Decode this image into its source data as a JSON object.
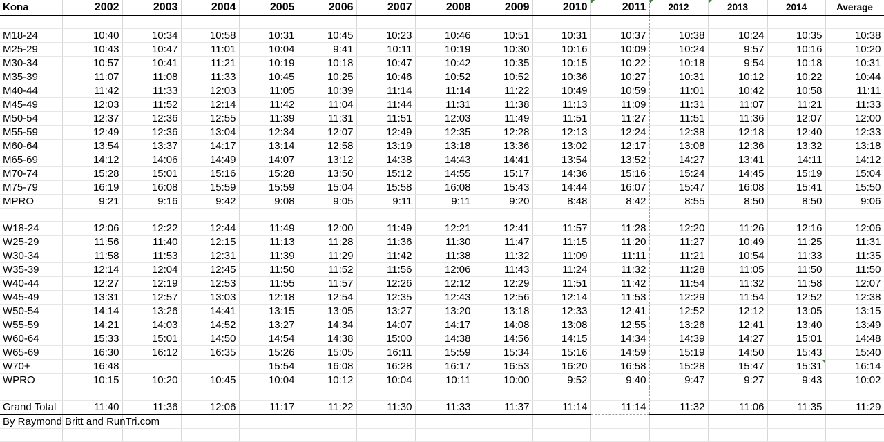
{
  "sheet": {
    "corner": "Kona",
    "years": [
      "2002",
      "2003",
      "2004",
      "2005",
      "2006",
      "2007",
      "2008",
      "2009",
      "2010",
      "2011",
      "2012",
      "2013",
      "2014"
    ],
    "average_label": "Average",
    "men_rows": [
      {
        "label": "M18-24",
        "values": [
          "10:40",
          "10:34",
          "10:58",
          "10:31",
          "10:45",
          "10:23",
          "10:46",
          "10:51",
          "10:31",
          "10:37",
          "10:38",
          "10:24",
          "10:35",
          "10:38"
        ]
      },
      {
        "label": "M25-29",
        "values": [
          "10:43",
          "10:47",
          "11:01",
          "10:04",
          "9:41",
          "10:11",
          "10:19",
          "10:30",
          "10:16",
          "10:09",
          "10:24",
          "9:57",
          "10:16",
          "10:20"
        ]
      },
      {
        "label": "M30-34",
        "values": [
          "10:57",
          "10:41",
          "11:21",
          "10:19",
          "10:18",
          "10:47",
          "10:42",
          "10:35",
          "10:15",
          "10:22",
          "10:18",
          "9:54",
          "10:18",
          "10:31"
        ]
      },
      {
        "label": "M35-39",
        "values": [
          "11:07",
          "11:08",
          "11:33",
          "10:45",
          "10:25",
          "10:46",
          "10:52",
          "10:52",
          "10:36",
          "10:27",
          "10:31",
          "10:12",
          "10:22",
          "10:44"
        ]
      },
      {
        "label": "M40-44",
        "values": [
          "11:42",
          "11:33",
          "12:03",
          "11:05",
          "10:39",
          "11:14",
          "11:14",
          "11:22",
          "10:49",
          "10:59",
          "11:01",
          "10:42",
          "10:58",
          "11:11"
        ]
      },
      {
        "label": "M45-49",
        "values": [
          "12:03",
          "11:52",
          "12:14",
          "11:42",
          "11:04",
          "11:44",
          "11:31",
          "11:38",
          "11:13",
          "11:09",
          "11:31",
          "11:07",
          "11:21",
          "11:33"
        ]
      },
      {
        "label": "M50-54",
        "values": [
          "12:37",
          "12:36",
          "12:55",
          "11:39",
          "11:31",
          "11:51",
          "12:03",
          "11:49",
          "11:51",
          "11:27",
          "11:51",
          "11:36",
          "12:07",
          "12:00"
        ]
      },
      {
        "label": "M55-59",
        "values": [
          "12:49",
          "12:36",
          "13:04",
          "12:34",
          "12:07",
          "12:49",
          "12:35",
          "12:28",
          "12:13",
          "12:24",
          "12:38",
          "12:18",
          "12:40",
          "12:33"
        ]
      },
      {
        "label": "M60-64",
        "values": [
          "13:54",
          "13:37",
          "14:17",
          "13:14",
          "12:58",
          "13:19",
          "13:18",
          "13:36",
          "13:02",
          "12:17",
          "13:08",
          "12:36",
          "13:32",
          "13:18"
        ]
      },
      {
        "label": "M65-69",
        "values": [
          "14:12",
          "14:06",
          "14:49",
          "14:07",
          "13:12",
          "14:38",
          "14:43",
          "14:41",
          "13:54",
          "13:52",
          "14:27",
          "13:41",
          "14:11",
          "14:12"
        ]
      },
      {
        "label": "M70-74",
        "values": [
          "15:28",
          "15:01",
          "15:16",
          "15:28",
          "13:50",
          "15:12",
          "14:55",
          "15:17",
          "14:36",
          "15:16",
          "15:24",
          "14:45",
          "15:19",
          "15:04"
        ]
      },
      {
        "label": "M75-79",
        "values": [
          "16:19",
          "16:08",
          "15:59",
          "15:59",
          "15:04",
          "15:58",
          "16:08",
          "15:43",
          "14:44",
          "16:07",
          "15:47",
          "16:08",
          "15:41",
          "15:50"
        ]
      },
      {
        "label": "MPRO",
        "values": [
          "9:21",
          "9:16",
          "9:42",
          "9:08",
          "9:05",
          "9:11",
          "9:11",
          "9:20",
          "8:48",
          "8:42",
          "8:55",
          "8:50",
          "8:50",
          "9:06"
        ]
      }
    ],
    "women_rows": [
      {
        "label": "W18-24",
        "values": [
          "12:06",
          "12:22",
          "12:44",
          "11:49",
          "12:00",
          "11:49",
          "12:21",
          "12:41",
          "11:57",
          "11:28",
          "12:20",
          "11:26",
          "12:16",
          "12:06"
        ]
      },
      {
        "label": "W25-29",
        "values": [
          "11:56",
          "11:40",
          "12:15",
          "11:13",
          "11:28",
          "11:36",
          "11:30",
          "11:47",
          "11:15",
          "11:20",
          "11:27",
          "10:49",
          "11:25",
          "11:31"
        ]
      },
      {
        "label": "W30-34",
        "values": [
          "11:58",
          "11:53",
          "12:31",
          "11:39",
          "11:29",
          "11:42",
          "11:38",
          "11:32",
          "11:09",
          "11:11",
          "11:21",
          "10:54",
          "11:33",
          "11:35"
        ]
      },
      {
        "label": "W35-39",
        "values": [
          "12:14",
          "12:04",
          "12:45",
          "11:50",
          "11:52",
          "11:56",
          "12:06",
          "11:43",
          "11:24",
          "11:32",
          "11:28",
          "11:05",
          "11:50",
          "11:50"
        ]
      },
      {
        "label": "W40-44",
        "values": [
          "12:27",
          "12:19",
          "12:53",
          "11:55",
          "11:57",
          "12:26",
          "12:12",
          "12:29",
          "11:51",
          "11:42",
          "11:54",
          "11:32",
          "11:58",
          "12:07"
        ]
      },
      {
        "label": "W45-49",
        "values": [
          "13:31",
          "12:57",
          "13:03",
          "12:18",
          "12:54",
          "12:35",
          "12:43",
          "12:56",
          "12:14",
          "11:53",
          "12:29",
          "11:54",
          "12:52",
          "12:38"
        ]
      },
      {
        "label": "W50-54",
        "values": [
          "14:14",
          "13:26",
          "14:41",
          "13:15",
          "13:05",
          "13:27",
          "13:20",
          "13:18",
          "12:33",
          "12:41",
          "12:52",
          "12:12",
          "13:05",
          "13:15"
        ]
      },
      {
        "label": "W55-59",
        "values": [
          "14:21",
          "14:03",
          "14:52",
          "13:27",
          "14:34",
          "14:07",
          "14:17",
          "14:08",
          "13:08",
          "12:55",
          "13:26",
          "12:41",
          "13:40",
          "13:49"
        ]
      },
      {
        "label": "W60-64",
        "values": [
          "15:33",
          "15:01",
          "14:50",
          "14:54",
          "14:38",
          "15:00",
          "14:38",
          "14:56",
          "14:15",
          "14:34",
          "14:39",
          "14:27",
          "15:01",
          "14:48"
        ]
      },
      {
        "label": "W65-69",
        "values": [
          "16:30",
          "16:12",
          "16:35",
          "15:26",
          "15:05",
          "16:11",
          "15:59",
          "15:34",
          "15:16",
          "14:59",
          "15:19",
          "14:50",
          "15:43",
          "15:40"
        ]
      },
      {
        "label": "W70+",
        "values": [
          "16:48",
          "",
          "",
          "15:54",
          "16:08",
          "16:28",
          "16:17",
          "16:53",
          "16:20",
          "16:58",
          "15:28",
          "15:47",
          "15:31",
          "16:14"
        ]
      },
      {
        "label": "WPRO",
        "values": [
          "10:15",
          "10:20",
          "10:45",
          "10:04",
          "10:12",
          "10:04",
          "10:11",
          "10:00",
          "9:52",
          "9:40",
          "9:47",
          "9:27",
          "9:43",
          "10:02"
        ]
      }
    ],
    "total_row": {
      "label": "Grand Total",
      "values": [
        "11:40",
        "11:36",
        "12:06",
        "11:17",
        "11:22",
        "11:30",
        "11:33",
        "11:37",
        "11:14",
        "11:14",
        "11:32",
        "11:06",
        "11:35",
        "11:29"
      ]
    },
    "credit": "By Raymond Britt and RunTri.com",
    "marker_color": "#2e8b2e"
  }
}
